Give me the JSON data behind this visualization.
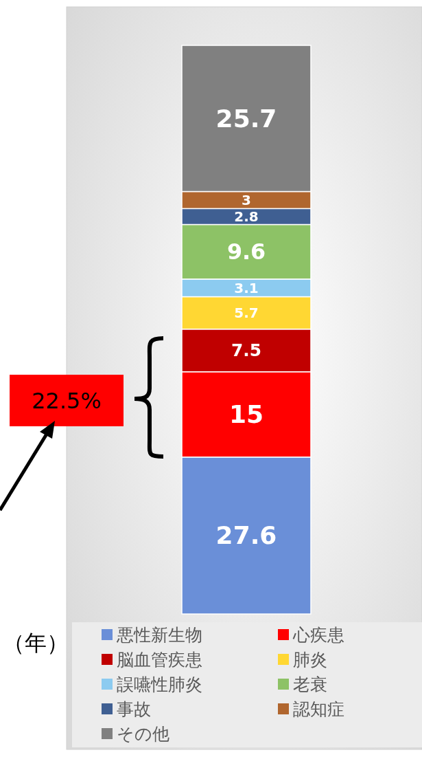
{
  "chart_data": {
    "type": "bar",
    "stacked": true,
    "categories": [
      null
    ],
    "data_labels": true,
    "legend": "bottom",
    "series": [
      {
        "name": "悪性新生物",
        "color": "#6a8fd8",
        "values": [
          27.6
        ]
      },
      {
        "name": "心疾患",
        "color": "#ff0000",
        "values": [
          15
        ]
      },
      {
        "name": "脳血管疾患",
        "color": "#c00000",
        "values": [
          7.5
        ]
      },
      {
        "name": "肺炎",
        "color": "#ffd733",
        "values": [
          5.7
        ]
      },
      {
        "name": "誤嚥性肺炎",
        "color": "#8ccbf0",
        "values": [
          3.1
        ]
      },
      {
        "name": "老衰",
        "color": "#8dc266",
        "values": [
          9.6
        ]
      },
      {
        "name": "事故",
        "color": "#3f5f92",
        "values": [
          2.8
        ]
      },
      {
        "name": "認知症",
        "color": "#b0662e",
        "values": [
          3
        ]
      },
      {
        "name": "その他",
        "color": "#808080",
        "values": [
          25.7
        ]
      }
    ],
    "annotations": [
      "22.5%",
      "（年）"
    ]
  }
}
